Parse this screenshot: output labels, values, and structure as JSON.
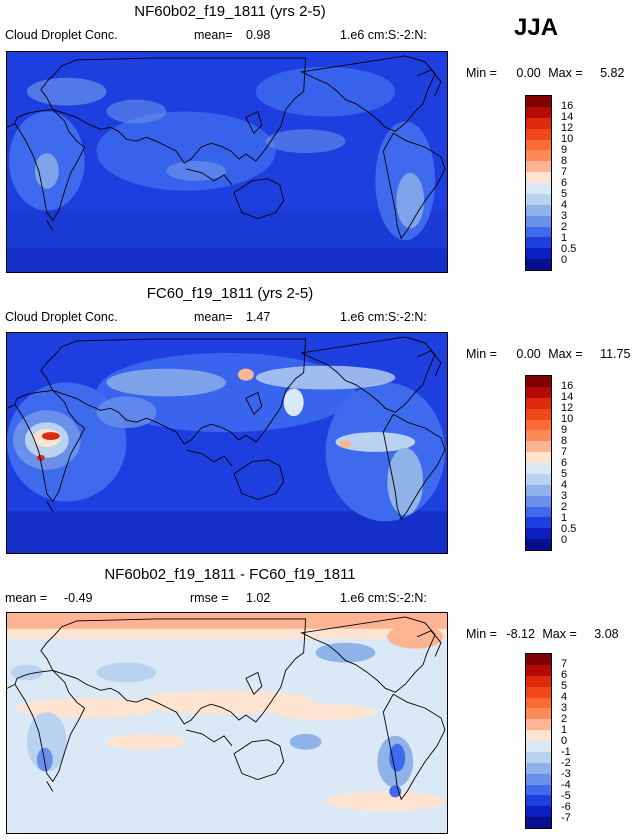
{
  "season": "JJA",
  "panels": [
    {
      "title": "NF60b02_f19_1811 (yrs 2-5)",
      "left_label": "Cloud Droplet Conc.",
      "mean_text": "mean=",
      "mean_value": "0.98",
      "units": "1.e6 cm:S:-2:N:",
      "min_label": "Min =",
      "min_value": "0.00",
      "max_label": "Max =",
      "max_value": "5.82",
      "colorbar_labels": [
        "16",
        "14",
        "12",
        "10",
        "9",
        "8",
        "7",
        "6",
        "5",
        "4",
        "3",
        "2",
        "1",
        "0.5",
        "0"
      ]
    },
    {
      "title": "FC60_f19_1811 (yrs 2-5)",
      "left_label": "Cloud Droplet Conc.",
      "mean_text": "mean=",
      "mean_value": "1.47",
      "units": "1.e6 cm:S:-2:N:",
      "min_label": "Min =",
      "min_value": "0.00",
      "max_label": "Max =",
      "max_value": "11.75",
      "colorbar_labels": [
        "16",
        "14",
        "12",
        "10",
        "9",
        "8",
        "7",
        "6",
        "5",
        "4",
        "3",
        "2",
        "1",
        "0.5",
        "0"
      ]
    },
    {
      "title": "NF60b02_f19_1811 - FC60_f19_1811",
      "mean_text": "mean =",
      "mean_value": "-0.49",
      "rmse_text": "rmse =",
      "rmse_value": "1.02",
      "units": "1.e6 cm:S:-2:N:",
      "min_label": "Min =",
      "min_value": "-8.12",
      "max_label": "Max =",
      "max_value": "3.08",
      "colorbar_labels": [
        "7",
        "6",
        "5",
        "4",
        "3",
        "2",
        "1",
        "0",
        "-1",
        "-2",
        "-3",
        "-4",
        "-5",
        "-6",
        "-7"
      ]
    }
  ],
  "colorbar_colors": [
    "#7f0000",
    "#b40a06",
    "#dc2a0c",
    "#f0481a",
    "#fa6a32",
    "#fd8b5a",
    "#fcb493",
    "#fde3d0",
    "#dbe9f7",
    "#b9d2f0",
    "#8fb2e8",
    "#6a90ea",
    "#3e6bee",
    "#1d3fe0",
    "#0b1fc0",
    "#070f8c"
  ]
}
